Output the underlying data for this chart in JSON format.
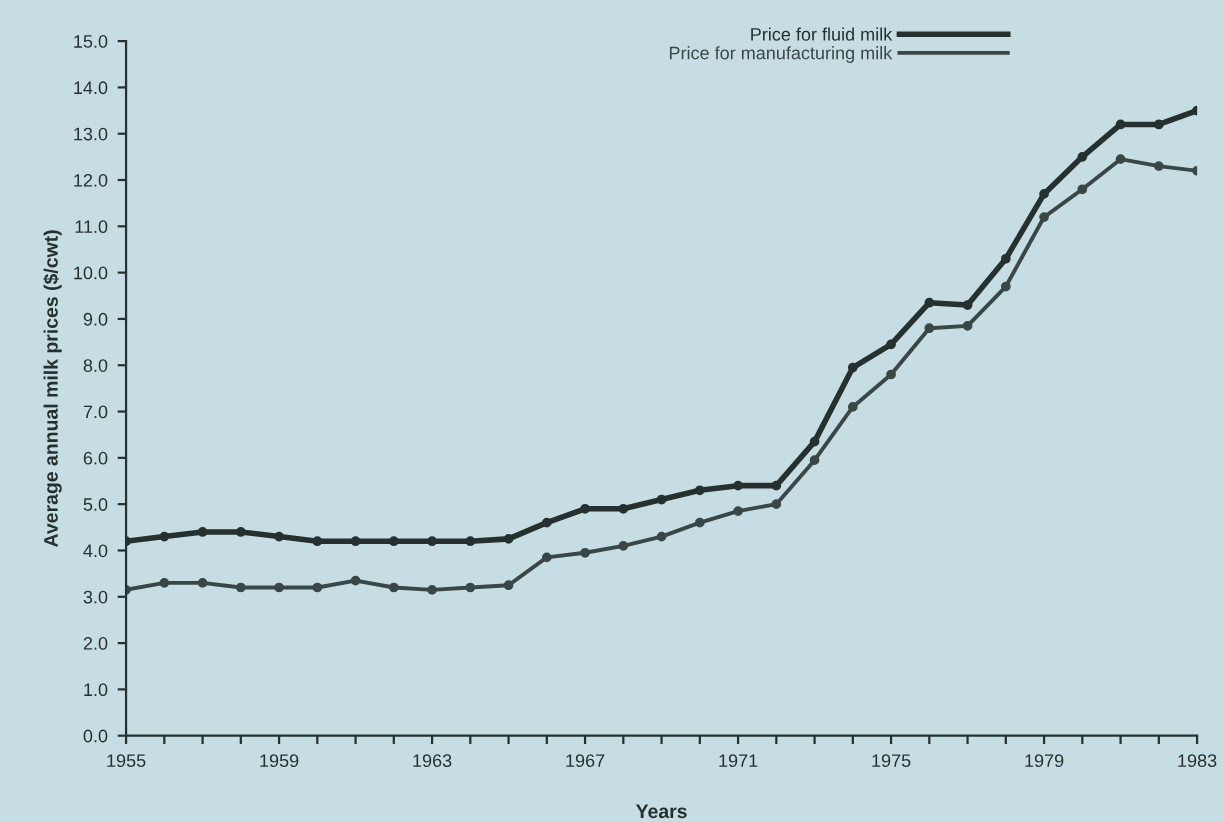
{
  "chart_data": {
    "type": "line",
    "xlabel": "Years",
    "ylabel": "Average annual milk prices ($/cwt)",
    "x": [
      1955,
      1956,
      1957,
      1958,
      1959,
      1960,
      1961,
      1962,
      1963,
      1964,
      1965,
      1966,
      1967,
      1968,
      1969,
      1970,
      1971,
      1972,
      1973,
      1974,
      1975,
      1976,
      1977,
      1978,
      1979,
      1980,
      1981,
      1982,
      1983
    ],
    "series": [
      {
        "name": "Price for fluid milk",
        "color": "#26302f",
        "values": [
          4.2,
          4.3,
          4.4,
          4.4,
          4.3,
          4.2,
          4.2,
          4.2,
          4.2,
          4.2,
          4.25,
          4.6,
          4.9,
          4.9,
          5.1,
          5.3,
          5.4,
          5.4,
          6.35,
          7.95,
          8.45,
          9.35,
          9.3,
          10.3,
          11.7,
          12.5,
          13.2,
          13.2,
          13.5
        ]
      },
      {
        "name": "Price for manufacturing milk",
        "color": "#3a4746",
        "values": [
          3.15,
          3.3,
          3.3,
          3.2,
          3.2,
          3.2,
          3.35,
          3.2,
          3.15,
          3.2,
          3.25,
          3.85,
          3.95,
          4.1,
          4.3,
          4.6,
          4.85,
          5.0,
          5.95,
          7.1,
          7.8,
          8.8,
          8.85,
          9.7,
          11.2,
          11.8,
          12.45,
          12.3,
          12.2
        ]
      }
    ],
    "xlim": [
      1955,
      1983
    ],
    "xticks": [
      1955,
      {
        "value": 1956,
        "label": null
      },
      {
        "value": 1957,
        "label": null
      },
      {
        "value": 1958,
        "label": null
      },
      1959,
      {
        "value": 1960,
        "label": null
      },
      {
        "value": 1961,
        "label": null
      },
      {
        "value": 1962,
        "label": null
      },
      1963,
      {
        "value": 1964,
        "label": null
      },
      {
        "value": 1965,
        "label": null
      },
      {
        "value": 1966,
        "label": null
      },
      1967,
      {
        "value": 1968,
        "label": null
      },
      {
        "value": 1969,
        "label": null
      },
      {
        "value": 1970,
        "label": null
      },
      1971,
      {
        "value": 1972,
        "label": null
      },
      {
        "value": 1973,
        "label": null
      },
      {
        "value": 1974,
        "label": null
      },
      1975,
      {
        "value": 1976,
        "label": null
      },
      {
        "value": 1977,
        "label": null
      },
      {
        "value": 1978,
        "label": null
      },
      1979,
      {
        "value": 1980,
        "label": null
      },
      {
        "value": 1981,
        "label": null
      },
      {
        "value": 1982,
        "label": null
      },
      1983
    ],
    "ylim": [
      0,
      15
    ],
    "yticks": [
      {
        "value": 0,
        "label": "0.0"
      },
      {
        "value": 1,
        "label": "1.0"
      },
      {
        "value": 2,
        "label": "2.0"
      },
      {
        "value": 3,
        "label": "3.0"
      },
      {
        "value": 4,
        "label": "4.0"
      },
      {
        "value": 5,
        "label": "5.0"
      },
      {
        "value": 6,
        "label": "6.0"
      },
      {
        "value": 7,
        "label": "7.0"
      },
      {
        "value": 8,
        "label": "8.0"
      },
      {
        "value": 9,
        "label": "9.0"
      },
      {
        "value": 10,
        "label": "10.0"
      },
      {
        "value": 11,
        "label": "11.0"
      },
      {
        "value": 12,
        "label": "12.0"
      },
      {
        "value": 13,
        "label": "13.0"
      },
      {
        "value": 14,
        "label": "14.0"
      },
      {
        "value": 15,
        "label": "15.0"
      }
    ],
    "grid": false,
    "legend": "top right",
    "marker": "circle",
    "line_style": "solid"
  }
}
